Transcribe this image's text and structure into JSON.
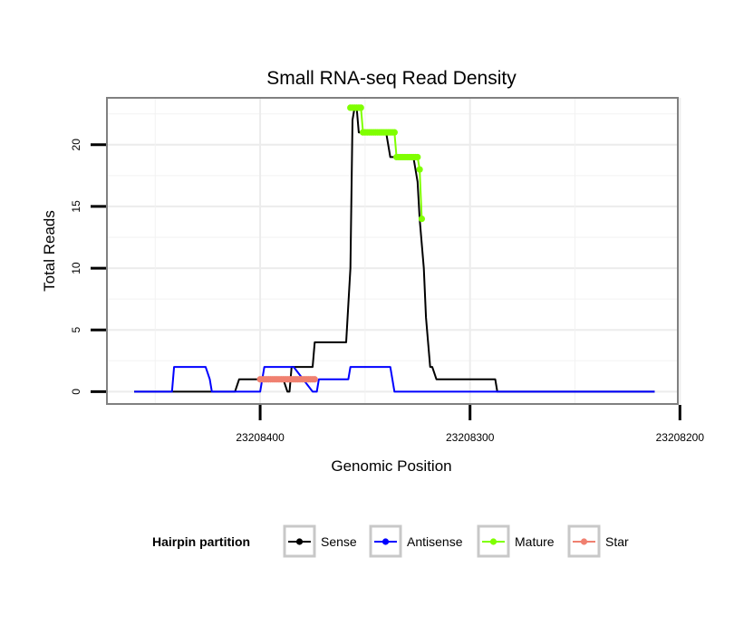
{
  "chart_data": {
    "type": "line",
    "title": "Small RNA-seq Read Density",
    "xlabel": "Genomic Position",
    "ylabel": "Total Reads",
    "x_reversed": true,
    "xlim": [
      23208201,
      23208473
    ],
    "ylim": [
      -1,
      23.8
    ],
    "xticks": [
      {
        "value": 23208400,
        "label": "23208400"
      },
      {
        "value": 23208300,
        "label": "23208300"
      },
      {
        "value": 23208200,
        "label": "23208200"
      }
    ],
    "yticks": [
      {
        "value": 0,
        "label": "0"
      },
      {
        "value": 5,
        "label": "5"
      },
      {
        "value": 10,
        "label": "10"
      },
      {
        "value": 15,
        "label": "15"
      },
      {
        "value": 20,
        "label": "20"
      }
    ],
    "grid": true,
    "legend": {
      "title": "Hairpin partition",
      "position": "bottom",
      "entries": [
        "Sense",
        "Antisense",
        "Mature",
        "Star"
      ]
    },
    "series": [
      {
        "name": "Sense",
        "color": "#000000",
        "markers": false,
        "x": [
          23208460,
          23208412,
          23208410,
          23208407,
          23208391,
          23208389,
          23208387,
          23208386,
          23208385,
          23208375,
          23208374,
          23208372,
          23208359,
          23208357,
          23208356,
          23208355,
          23208354,
          23208353,
          23208352,
          23208351,
          23208350,
          23208349,
          23208340,
          23208339,
          23208338,
          23208327,
          23208326,
          23208325,
          23208324,
          23208323,
          23208322,
          23208321,
          23208320,
          23208319,
          23208318,
          23208316,
          23208314,
          23208313,
          23208312,
          23208311,
          23208310,
          23208288,
          23208287,
          23208212
        ],
        "y": [
          0,
          0,
          1,
          1,
          1,
          1,
          0,
          0,
          2,
          2,
          4,
          4,
          4,
          10,
          22,
          23,
          23,
          21,
          21,
          21,
          21,
          21,
          21,
          20,
          19,
          19,
          18,
          17,
          14,
          12,
          10,
          6,
          4,
          2,
          2,
          1,
          1,
          1,
          1,
          1,
          1,
          1,
          0,
          0
        ]
      },
      {
        "name": "Antisense",
        "color": "#0000ff",
        "markers": false,
        "x": [
          23208460,
          23208442,
          23208441,
          23208426,
          23208424,
          23208423,
          23208421,
          23208400,
          23208398,
          23208397,
          23208394,
          23208384,
          23208375,
          23208374,
          23208373,
          23208372,
          23208358,
          23208357,
          23208356,
          23208339,
          23208338,
          23208337,
          23208336,
          23208327,
          23208326,
          23208316,
          23208212
        ],
        "y": [
          0,
          0,
          2,
          2,
          1,
          0,
          0,
          0,
          2,
          2,
          2,
          2,
          0,
          0,
          0,
          1,
          1,
          2,
          2,
          2,
          2,
          1,
          0,
          0,
          0,
          0,
          0
        ]
      },
      {
        "name": "Mature",
        "color": "#7fff00",
        "markers": true,
        "x": [
          23208357,
          23208356,
          23208355,
          23208354,
          23208353,
          23208352,
          23208351,
          23208350,
          23208349,
          23208348,
          23208347,
          23208346,
          23208345,
          23208344,
          23208343,
          23208342,
          23208341,
          23208340,
          23208339,
          23208338,
          23208337,
          23208336,
          23208335,
          23208334,
          23208333,
          23208332,
          23208331,
          23208330,
          23208329,
          23208328,
          23208327,
          23208326,
          23208325,
          23208324,
          23208323
        ],
        "y": [
          23,
          23,
          23,
          23,
          23,
          23,
          21,
          21,
          21,
          21,
          21,
          21,
          21,
          21,
          21,
          21,
          21,
          21,
          21,
          21,
          21,
          21,
          19,
          19,
          19,
          19,
          19,
          19,
          19,
          19,
          19,
          19,
          19,
          18,
          14
        ]
      },
      {
        "name": "Star",
        "color": "#f08070",
        "markers": true,
        "x": [
          23208400,
          23208399,
          23208398,
          23208397,
          23208396,
          23208395,
          23208394,
          23208393,
          23208392,
          23208391,
          23208390,
          23208389,
          23208388,
          23208387,
          23208386,
          23208385,
          23208384,
          23208383,
          23208382,
          23208381,
          23208380,
          23208379,
          23208378,
          23208377,
          23208376,
          23208375,
          23208374
        ],
        "y": [
          1,
          1,
          1,
          1,
          1,
          1,
          1,
          1,
          1,
          1,
          1,
          1,
          1,
          1,
          1,
          1,
          1,
          1,
          1,
          1,
          1,
          1,
          1,
          1,
          1,
          1,
          1
        ]
      }
    ]
  }
}
